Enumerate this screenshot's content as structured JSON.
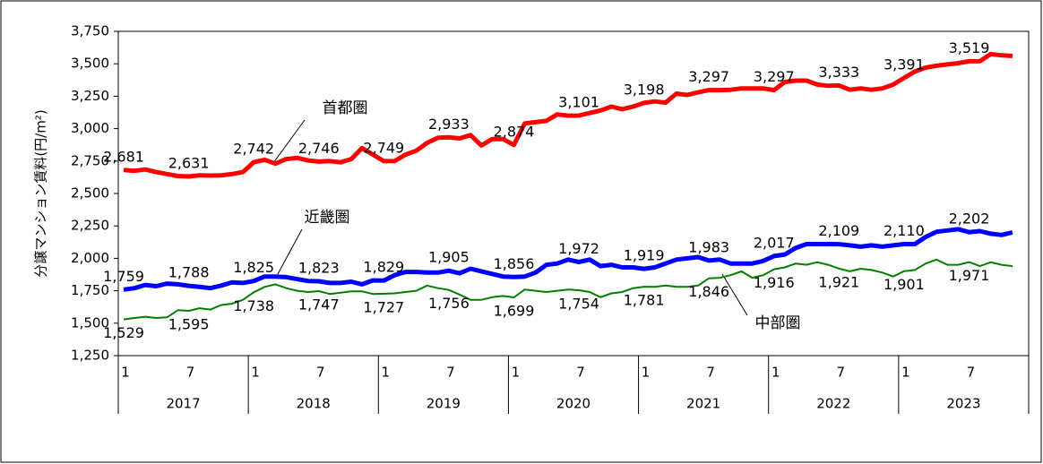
{
  "chart_data": {
    "type": "line",
    "y_label": "分譲マンション賃料(円/m²)",
    "categories": [
      "1",
      null,
      null,
      null,
      null,
      null,
      "7",
      null,
      null,
      null,
      null,
      null,
      "1",
      null,
      null,
      null,
      null,
      null,
      "7",
      null,
      null,
      null,
      null,
      null,
      "1",
      null,
      null,
      null,
      null,
      null,
      "7",
      null,
      null,
      null,
      null,
      null,
      "1",
      null,
      null,
      null,
      null,
      null,
      "7",
      null,
      null,
      null,
      null,
      null,
      "1",
      null,
      null,
      null,
      null,
      null,
      "7",
      null,
      null,
      null,
      null,
      null,
      "1",
      null,
      null,
      null,
      null,
      null,
      "7",
      null,
      null,
      null,
      null,
      null,
      "1",
      null,
      null,
      null,
      null,
      null,
      "7",
      null,
      null,
      null,
      null,
      null
    ],
    "year_groups": [
      "2017",
      "2018",
      "2019",
      "2020",
      "2021",
      "2022",
      "2023"
    ],
    "ylim": [
      1250,
      3750
    ],
    "yticks": [
      {
        "value": 1250,
        "label": "1,250"
      },
      {
        "value": 1500,
        "label": "1,500"
      },
      {
        "value": 1750,
        "label": "1,750"
      },
      {
        "value": 2000,
        "label": "2,000"
      },
      {
        "value": 2250,
        "label": "2,250"
      },
      {
        "value": 2500,
        "label": "2,500"
      },
      {
        "value": 2750,
        "label": "2,750"
      },
      {
        "value": 3000,
        "label": "3,000"
      },
      {
        "value": 3250,
        "label": "3,250"
      },
      {
        "value": 3500,
        "label": "3,500"
      },
      {
        "value": 3750,
        "label": "3,750"
      }
    ],
    "grid": false,
    "series": [
      {
        "name": "首都圏",
        "color": "#ff0000",
        "width": 5,
        "label_side": "above",
        "values": [
          2681,
          2675,
          2685,
          2665,
          2650,
          2635,
          2631,
          2640,
          2638,
          2640,
          2650,
          2665,
          2742,
          2760,
          2730,
          2765,
          2775,
          2755,
          2746,
          2750,
          2740,
          2765,
          2850,
          2800,
          2749,
          2750,
          2800,
          2830,
          2890,
          2930,
          2933,
          2925,
          2950,
          2870,
          2920,
          2920,
          2874,
          3040,
          3050,
          3060,
          3110,
          3100,
          3101,
          3120,
          3140,
          3170,
          3150,
          3170,
          3198,
          3210,
          3200,
          3270,
          3260,
          3280,
          3297,
          3297,
          3300,
          3310,
          3310,
          3310,
          3297,
          3360,
          3370,
          3370,
          3340,
          3330,
          3333,
          3300,
          3310,
          3300,
          3310,
          3340,
          3391,
          3440,
          3470,
          3485,
          3495,
          3505,
          3519,
          3520,
          3575,
          3565,
          3560,
          null
        ],
        "value_labels": [
          "2,681",
          null,
          null,
          null,
          null,
          null,
          "2,631",
          null,
          null,
          null,
          null,
          null,
          "2,742",
          null,
          null,
          null,
          null,
          null,
          "2,746",
          null,
          null,
          null,
          null,
          null,
          "2,749",
          null,
          null,
          null,
          null,
          null,
          "2,933",
          null,
          null,
          null,
          null,
          null,
          "2,874",
          null,
          null,
          null,
          null,
          null,
          "3,101",
          null,
          null,
          null,
          null,
          null,
          "3,198",
          null,
          null,
          null,
          null,
          null,
          "3,297",
          null,
          null,
          null,
          null,
          null,
          "3,297",
          null,
          null,
          null,
          null,
          null,
          "3,333",
          null,
          null,
          null,
          null,
          null,
          "3,391",
          null,
          null,
          null,
          null,
          null,
          "3,519",
          null,
          null,
          null,
          null,
          null
        ]
      },
      {
        "name": "近畿圏",
        "color": "#0000ff",
        "width": 5,
        "label_side": "above",
        "values": [
          1759,
          1770,
          1795,
          1785,
          1805,
          1800,
          1788,
          1780,
          1770,
          1790,
          1815,
          1810,
          1825,
          1860,
          1860,
          1855,
          1840,
          1825,
          1823,
          1810,
          1810,
          1820,
          1800,
          1830,
          1829,
          1870,
          1895,
          1895,
          1890,
          1890,
          1905,
          1885,
          1920,
          1900,
          1880,
          1860,
          1856,
          1860,
          1890,
          1950,
          1960,
          1990,
          1972,
          1990,
          1940,
          1950,
          1930,
          1930,
          1919,
          1930,
          1960,
          1990,
          2000,
          2010,
          1983,
          1990,
          1960,
          1960,
          1960,
          1980,
          2017,
          2030,
          2080,
          2110,
          2110,
          2110,
          2109,
          2100,
          2090,
          2100,
          2090,
          2100,
          2110,
          2110,
          2165,
          2205,
          2215,
          2225,
          2202,
          2210,
          2190,
          2180,
          2200,
          null
        ],
        "value_labels": [
          "1,759",
          null,
          null,
          null,
          null,
          null,
          "1,788",
          null,
          null,
          null,
          null,
          null,
          "1,825",
          null,
          null,
          null,
          null,
          null,
          "1,823",
          null,
          null,
          null,
          null,
          null,
          "1,829",
          null,
          null,
          null,
          null,
          null,
          "1,905",
          null,
          null,
          null,
          null,
          null,
          "1,856",
          null,
          null,
          null,
          null,
          null,
          "1,972",
          null,
          null,
          null,
          null,
          null,
          "1,919",
          null,
          null,
          null,
          null,
          null,
          "1,983",
          null,
          null,
          null,
          null,
          null,
          "2,017",
          null,
          null,
          null,
          null,
          null,
          "2,109",
          null,
          null,
          null,
          null,
          null,
          "2,110",
          null,
          null,
          null,
          null,
          null,
          "2,202",
          null,
          null,
          null,
          null,
          null
        ]
      },
      {
        "name": "中部圏",
        "color": "#008000",
        "width": 2,
        "label_side": "below",
        "values": [
          1529,
          1540,
          1550,
          1540,
          1545,
          1600,
          1595,
          1615,
          1605,
          1640,
          1650,
          1680,
          1738,
          1780,
          1800,
          1770,
          1750,
          1740,
          1747,
          1725,
          1735,
          1745,
          1745,
          1725,
          1727,
          1730,
          1740,
          1750,
          1790,
          1770,
          1756,
          1720,
          1680,
          1680,
          1700,
          1710,
          1699,
          1760,
          1750,
          1740,
          1750,
          1760,
          1754,
          1740,
          1700,
          1730,
          1740,
          1770,
          1781,
          1780,
          1790,
          1780,
          1780,
          1790,
          1846,
          1850,
          1870,
          1900,
          1850,
          1870,
          1916,
          1930,
          1960,
          1950,
          1970,
          1950,
          1921,
          1900,
          1920,
          1910,
          1890,
          1860,
          1901,
          1910,
          1960,
          1990,
          1950,
          1950,
          1971,
          1940,
          1970,
          1950,
          1940,
          null
        ],
        "value_labels": [
          "1,529",
          null,
          null,
          null,
          null,
          null,
          "1,595",
          null,
          null,
          null,
          null,
          null,
          "1,738",
          null,
          null,
          null,
          null,
          null,
          "1,747",
          null,
          null,
          null,
          null,
          null,
          "1,727",
          null,
          null,
          null,
          null,
          null,
          "1,756",
          null,
          null,
          null,
          null,
          null,
          "1,699",
          null,
          null,
          null,
          null,
          null,
          "1,754",
          null,
          null,
          null,
          null,
          null,
          "1,781",
          null,
          null,
          null,
          null,
          null,
          "1,846",
          null,
          null,
          null,
          null,
          null,
          "1,916",
          null,
          null,
          null,
          null,
          null,
          "1,921",
          null,
          null,
          null,
          null,
          null,
          "1,901",
          null,
          null,
          null,
          null,
          null,
          "1,971",
          null,
          null,
          null,
          null,
          null
        ]
      }
    ]
  }
}
